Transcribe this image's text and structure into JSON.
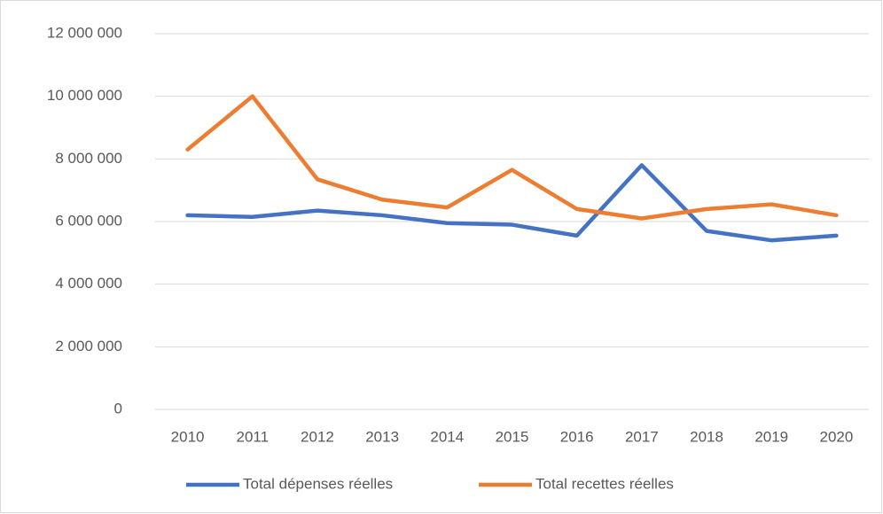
{
  "chart_data": {
    "type": "line",
    "categories": [
      "2010",
      "2011",
      "2012",
      "2013",
      "2014",
      "2015",
      "2016",
      "2017",
      "2018",
      "2019",
      "2020"
    ],
    "series": [
      {
        "name": "Total dépenses réelles",
        "color": "#4472c4",
        "values": [
          6200000,
          6150000,
          6350000,
          6200000,
          5950000,
          5900000,
          5550000,
          7800000,
          5700000,
          5400000,
          5550000
        ]
      },
      {
        "name": "Total recettes réelles",
        "color": "#ed7d31",
        "values": [
          8300000,
          10000000,
          7350000,
          6700000,
          6450000,
          7650000,
          6400000,
          6100000,
          6400000,
          6550000,
          6200000
        ]
      }
    ],
    "ylim": [
      0,
      12000000
    ],
    "yticks": [
      0,
      {
        "value": 2000000,
        "label": "2 000 000"
      },
      {
        "value": 4000000,
        "label": "4 000 000"
      },
      {
        "value": 6000000,
        "label": "6 000 000"
      },
      {
        "value": 8000000,
        "label": "8 000 000"
      },
      {
        "value": 10000000,
        "label": "10 000 000"
      },
      {
        "value": 12000000,
        "label": "12 000 000"
      }
    ],
    "grid": true,
    "legend": "bottom"
  }
}
